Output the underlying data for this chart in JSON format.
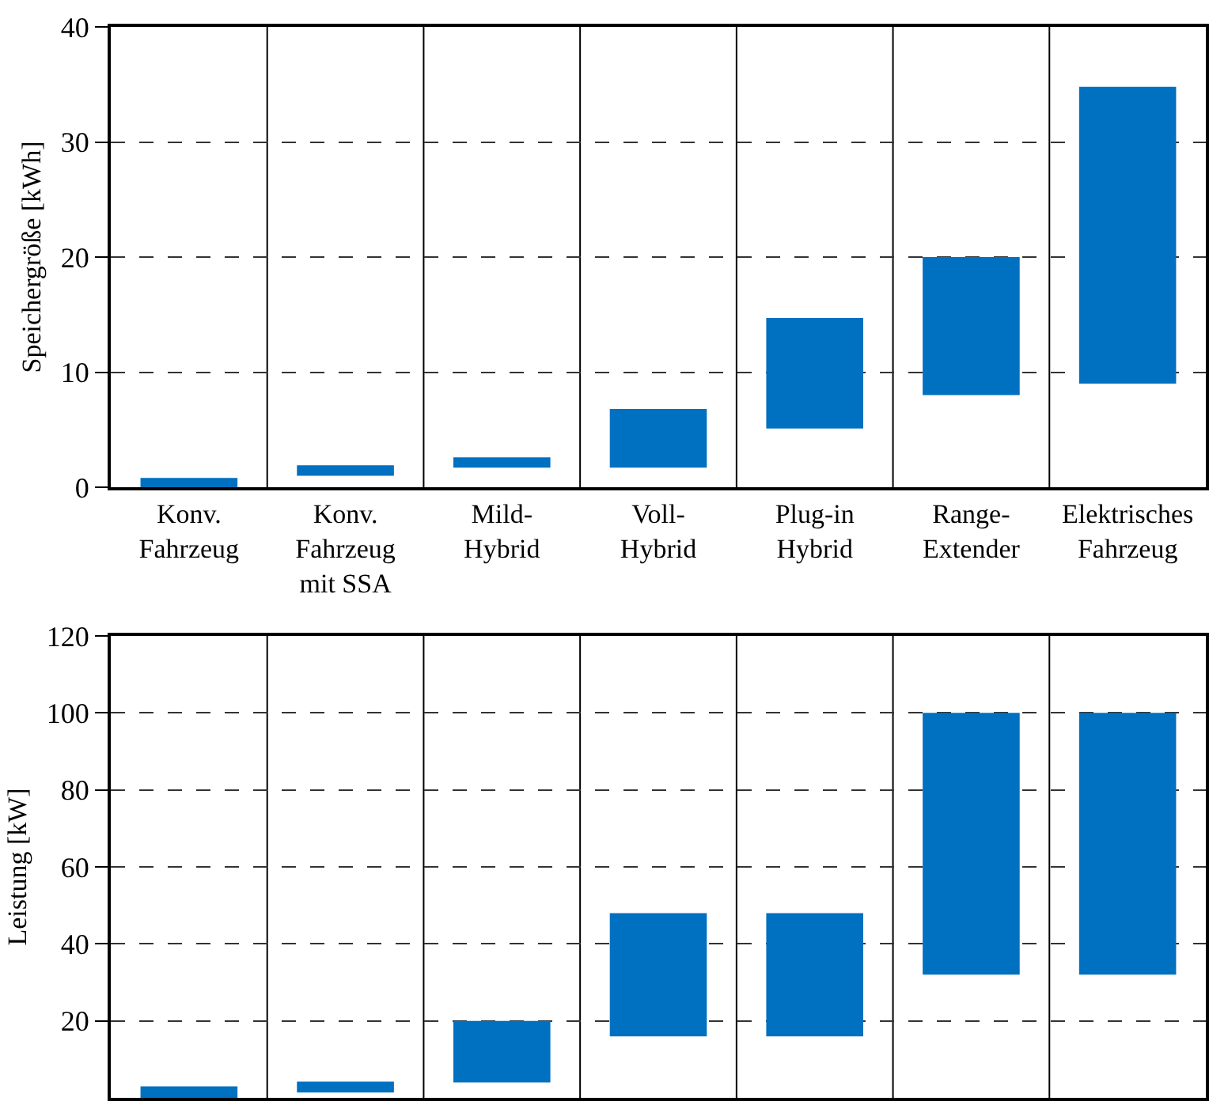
{
  "chart_data": [
    {
      "type": "bar",
      "ylabel": "Speichergröße [kWh]",
      "categories": [
        "Konv.\nFahrzeug",
        "Konv.\nFahrzeug\nmit SSA",
        "Mild-\nHybrid",
        "Voll-\nHybrid",
        "Plug-in\nHybrid",
        "Range-\nExtender",
        "Elektrisches\nFahrzeug"
      ],
      "base": [
        0,
        1,
        1.7,
        1.7,
        5.1,
        8,
        9
      ],
      "values": [
        0.8,
        0.9,
        0.9,
        5.1,
        9.6,
        12,
        25.8
      ],
      "color": "#0070c0",
      "ylim": [
        0,
        40
      ],
      "yticks": [
        0,
        10,
        20,
        30,
        40
      ],
      "grid": true
    },
    {
      "type": "bar",
      "ylabel": "Leistung [kW]",
      "categories": [
        null,
        null,
        null,
        null,
        null,
        null,
        null
      ],
      "base": [
        0,
        1.4,
        4,
        16,
        16,
        32,
        32
      ],
      "values": [
        3,
        2.8,
        16,
        32,
        32,
        68,
        68
      ],
      "color": "#0070c0",
      "ylim": [
        0,
        120
      ],
      "yticks": [
        20,
        40,
        60,
        80,
        100,
        120
      ],
      "grid": true,
      "tick_labels": "y"
    }
  ]
}
